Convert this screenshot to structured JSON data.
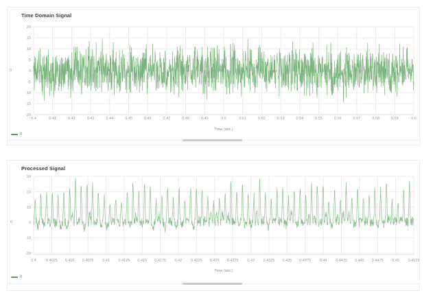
{
  "ui_colors": {
    "series_green": "#4f9c52",
    "scrollbar_thumb": "#c9c9c9",
    "grid_line": "#ebebeb",
    "tick_text": "#999999",
    "title_text": "#3c3c3c"
  },
  "chart_data": [
    {
      "type": "line",
      "title": "Time Domain Signal",
      "xlabel": "Time (sec.)",
      "ylabel": "0",
      "series": [
        {
          "name": "0",
          "color": "#4f9c52"
        }
      ],
      "legend_position": "bottom-left",
      "grid": true,
      "xlim": [
        0.4,
        0.6
      ],
      "ylim": [
        -21.5,
        21.5
      ],
      "x_ticks": [
        0.4,
        0.41,
        0.42,
        0.43,
        0.44,
        0.45,
        0.46,
        0.47,
        0.48,
        0.49,
        0.5,
        0.51,
        0.52,
        0.53,
        0.54,
        0.55,
        0.56,
        0.57,
        0.58,
        0.59,
        0.6
      ],
      "x_tick_labels": [
        "0.4",
        "0.41",
        "0.42",
        "0.43",
        "0.44",
        "0.45",
        "0.46",
        "0.47",
        "0.48",
        "0.49",
        "0.5",
        "0.51",
        "0.52",
        "0.53",
        "0.54",
        "0.55",
        "0.56",
        "0.57",
        "0.58",
        "0.59",
        "0.6"
      ],
      "y_ticks": [
        20,
        15,
        10,
        5,
        0,
        -5,
        -10,
        -15,
        -20
      ],
      "y_tick_labels": [
        "20",
        "15",
        "10",
        "5",
        "0",
        "-5",
        "-10",
        "-15",
        "-20"
      ],
      "signal": {
        "kind": "gaussian-noise",
        "mean": 0,
        "std": 5.2,
        "typical_range": [
          -10,
          10
        ],
        "peak_range": [
          -18,
          18
        ],
        "num_points": 1600,
        "seed": 11
      }
    },
    {
      "type": "line",
      "title": "Processed Signal",
      "xlabel": "Time (sec.)",
      "ylabel": "0",
      "series": [
        {
          "name": "0",
          "color": "#4f9c52"
        }
      ],
      "legend_position": "bottom-left",
      "grid": true,
      "xlim": [
        0.4,
        0.4525
      ],
      "ylim": [
        -22.5,
        33
      ],
      "x_ticks": [
        0.4,
        0.4025,
        0.405,
        0.4075,
        0.41,
        0.4125,
        0.415,
        0.4175,
        0.42,
        0.4225,
        0.425,
        0.4275,
        0.43,
        0.4325,
        0.435,
        0.4375,
        0.44,
        0.4425,
        0.445,
        0.4475,
        0.45,
        0.4525
      ],
      "x_tick_labels": [
        "0.4",
        "0.4025",
        "0.405",
        "0.4075",
        "0.41",
        "0.4125",
        "0.415",
        "0.4175",
        "0.42",
        "0.4225",
        "0.425",
        "0.4275",
        "0.43",
        "0.4325",
        "0.435",
        "0.4375",
        "0.44",
        "0.4425",
        "0.445",
        "0.4475",
        "0.45",
        "0.4525"
      ],
      "y_ticks": [
        30,
        20,
        10,
        0,
        -10,
        -20
      ],
      "y_tick_labels": [
        "30",
        "20",
        "10",
        "0",
        "-10",
        "-20"
      ],
      "signal": {
        "kind": "periodic-spikes",
        "cycles_visible": 66,
        "peak_height_range": [
          12,
          27
        ],
        "trough_depth_range": [
          -15,
          -4
        ],
        "noise_amplitude": 3,
        "num_points": 1400,
        "seed": 29
      }
    }
  ]
}
